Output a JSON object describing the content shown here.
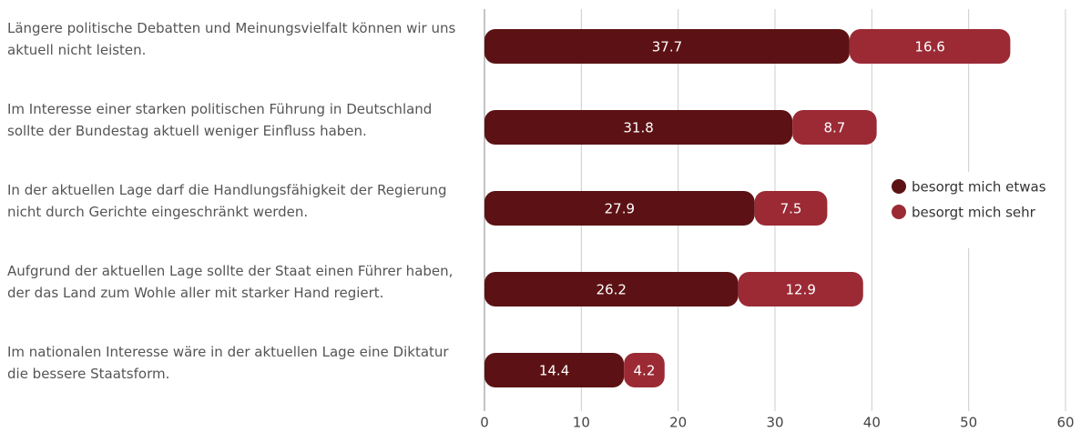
{
  "chart_data": {
    "type": "stacked_barh",
    "categories": [
      "Längere politische Debatten und Meinungsvielfalt können wir uns aktuell nicht leisten.",
      "Im Interesse einer starken politischen Führung in Deutschland sollte der Bundestag aktuell weniger Einfluss haben.",
      "In der aktuellen Lage darf die Handlungsfähigkeit der Regierung nicht durch Gerichte eingeschränkt werden.",
      "Aufgrund der aktuellen Lage sollte der Staat einen Führer haben, der das Land zum Wohle aller mit starker Hand regiert.",
      "Im nationalen Interesse wäre in der aktuellen Lage eine Diktatur die bessere Staatsform."
    ],
    "series": [
      {
        "name": "besorgt mich etwas",
        "color": "#5c1214",
        "values": [
          37.7,
          31.8,
          27.9,
          26.2,
          14.4
        ]
      },
      {
        "name": "besorgt mich sehr",
        "color": "#9b2a35",
        "values": [
          16.6,
          8.7,
          7.5,
          12.9,
          4.2
        ]
      }
    ],
    "xlim": [
      0,
      60
    ],
    "xticks": [
      0,
      10,
      20,
      30,
      40,
      50,
      60
    ],
    "grid": true,
    "legend": "right"
  }
}
